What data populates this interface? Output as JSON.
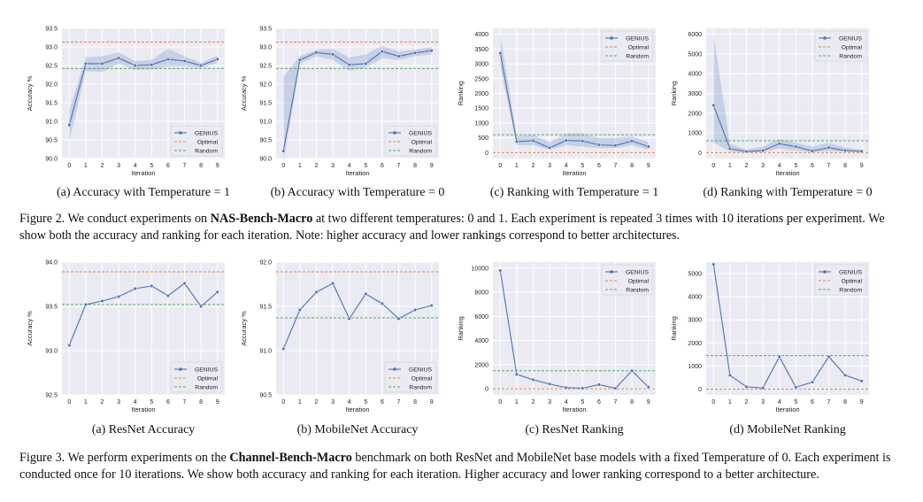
{
  "colors": {
    "plot_bg": "#eaeaf2",
    "grid": "#ffffff",
    "genius": "#4c72b0",
    "optimal": "#dd8452",
    "random": "#55a868",
    "band": "#4c72b0"
  },
  "legend_labels": [
    "GENIUS",
    "Optimal",
    "Random"
  ],
  "xlabel": "Iteration",
  "figure2": {
    "label": "Figure 2.",
    "caption_pre": " We conduct experiments on ",
    "caption_bold": "NAS-Bench-Macro",
    "caption_post": " at two different temperatures: 0 and 1. Each experiment is repeated 3 times with 10 iterations per experiment. We show both the accuracy and ranking for each iteration. Note: higher accuracy and lower rankings correspond to better architectures."
  },
  "figure3": {
    "label": "Figure 3.",
    "caption_pre": " We perform experiments on the ",
    "caption_bold": "Channel-Bench-Macro",
    "caption_post": " benchmark on both ResNet and MobileNet base models with a fixed Temperature of 0. Each experiment is conducted once for 10 iterations. We show both accuracy and ranking for each iteration. Higher accuracy and lower ranking correspond to a better architecture."
  },
  "chart_data": [
    {
      "id": "f2a",
      "type": "line",
      "subcaption": "(a) Accuracy with Temperature = 1",
      "xlabel": "Iteration",
      "ylabel": "Accuracy %",
      "x": [
        0,
        1,
        2,
        3,
        4,
        5,
        6,
        7,
        8,
        9
      ],
      "xlim": [
        0,
        9
      ],
      "ylim": [
        90.0,
        93.5
      ],
      "yticks": [
        "90.0",
        "90.5",
        "91.0",
        "91.5",
        "92.0",
        "92.5",
        "93.0",
        "93.5"
      ],
      "series": [
        {
          "name": "GENIUS",
          "values": [
            90.9,
            92.55,
            92.55,
            92.7,
            92.5,
            92.52,
            92.67,
            92.62,
            92.5,
            92.67
          ]
        }
      ],
      "band_low": [
        90.45,
        92.35,
        92.33,
        92.55,
        92.38,
        92.4,
        92.47,
        92.48,
        92.43,
        92.57
      ],
      "band_high": [
        91.3,
        92.72,
        92.75,
        92.85,
        92.62,
        92.65,
        92.95,
        92.75,
        92.57,
        92.77
      ],
      "optimal": 93.13,
      "random": 92.42,
      "legend": "bottom-right"
    },
    {
      "id": "f2b",
      "type": "line",
      "subcaption": "(b) Accuracy with Temperature = 0",
      "xlabel": "Iteration",
      "ylabel": "Accuracy %",
      "x": [
        0,
        1,
        2,
        3,
        4,
        5,
        6,
        7,
        8,
        9
      ],
      "xlim": [
        0,
        9
      ],
      "ylim": [
        90.0,
        93.5
      ],
      "yticks": [
        "90.0",
        "90.5",
        "91.0",
        "91.5",
        "92.0",
        "92.5",
        "93.0",
        "93.5"
      ],
      "series": [
        {
          "name": "GENIUS",
          "values": [
            90.2,
            92.65,
            92.85,
            92.8,
            92.52,
            92.55,
            92.88,
            92.75,
            92.84,
            92.9
          ]
        }
      ],
      "band_low": [
        89.9,
        92.55,
        92.75,
        92.65,
        92.35,
        92.45,
        92.7,
        92.65,
        92.75,
        92.8
      ],
      "band_high": [
        92.2,
        92.75,
        92.92,
        92.95,
        92.72,
        92.8,
        93.03,
        92.88,
        92.92,
        93.0
      ],
      "optimal": 93.13,
      "random": 92.42,
      "legend": "bottom-right"
    },
    {
      "id": "f2c",
      "type": "line",
      "subcaption": "(c) Ranking with Temperature = 1",
      "xlabel": "Iteration",
      "ylabel": "Ranking",
      "x": [
        0,
        1,
        2,
        3,
        4,
        5,
        6,
        7,
        8,
        9
      ],
      "xlim": [
        0,
        9
      ],
      "ylim": [
        -200,
        4200
      ],
      "yticks": [
        "0",
        "500",
        "1000",
        "1500",
        "2000",
        "2500",
        "3000",
        "3500",
        "4000"
      ],
      "series": [
        {
          "name": "GENIUS",
          "values": [
            3360,
            370,
            400,
            160,
            410,
            390,
            260,
            240,
            390,
            200
          ]
        }
      ],
      "band_low": [
        2900,
        250,
        250,
        100,
        250,
        200,
        150,
        150,
        250,
        100
      ],
      "band_high": [
        4000,
        550,
        600,
        350,
        650,
        650,
        500,
        500,
        550,
        350
      ],
      "optimal": 0,
      "random": 600,
      "legend": "top-right"
    },
    {
      "id": "f2d",
      "type": "line",
      "subcaption": "(d) Ranking with Temperature = 0",
      "xlabel": "Iteration",
      "ylabel": "Ranking",
      "x": [
        0,
        1,
        2,
        3,
        4,
        5,
        6,
        7,
        8,
        9
      ],
      "xlim": [
        0,
        9
      ],
      "ylim": [
        -300,
        6300
      ],
      "yticks": [
        "0",
        "1000",
        "2000",
        "3000",
        "4000",
        "5000",
        "6000"
      ],
      "series": [
        {
          "name": "GENIUS",
          "values": [
            2400,
            200,
            50,
            100,
            450,
            300,
            80,
            250,
            100,
            60
          ]
        }
      ],
      "band_low": [
        500,
        50,
        0,
        30,
        200,
        100,
        20,
        80,
        30,
        20
      ],
      "band_high": [
        6000,
        450,
        150,
        300,
        700,
        500,
        300,
        500,
        250,
        150
      ],
      "optimal": 0,
      "random": 600,
      "legend": "top-right"
    },
    {
      "id": "f3a",
      "type": "line",
      "subcaption": "(a) ResNet Accuracy",
      "xlabel": "Iteration",
      "ylabel": "Accuracy %",
      "x": [
        0,
        1,
        2,
        3,
        4,
        5,
        6,
        7,
        8,
        9
      ],
      "xlim": [
        0,
        9
      ],
      "ylim": [
        92.5,
        94.0
      ],
      "yticks": [
        "92.5",
        "93.0",
        "93.5",
        "94.0"
      ],
      "series": [
        {
          "name": "GENIUS",
          "values": [
            93.06,
            93.52,
            93.56,
            93.61,
            93.7,
            93.73,
            93.62,
            93.76,
            93.5,
            93.66
          ]
        }
      ],
      "optimal": 93.89,
      "random": 93.52,
      "legend": "bottom-right"
    },
    {
      "id": "f3b",
      "type": "line",
      "subcaption": "(b) MobileNet Accuracy",
      "xlabel": "Iteration",
      "ylabel": "Accuracy %",
      "x": [
        0,
        1,
        2,
        3,
        4,
        5,
        6,
        7,
        8,
        9
      ],
      "xlim": [
        0,
        9
      ],
      "ylim": [
        90.5,
        92.0
      ],
      "yticks": [
        "90.5",
        "91.0",
        "91.5",
        "92.0"
      ],
      "series": [
        {
          "name": "GENIUS",
          "values": [
            91.02,
            91.46,
            91.66,
            91.76,
            91.36,
            91.64,
            91.53,
            91.36,
            91.46,
            91.51
          ]
        }
      ],
      "optimal": 91.89,
      "random": 91.37,
      "legend": "bottom-right"
    },
    {
      "id": "f3c",
      "type": "line",
      "subcaption": "(c) ResNet Ranking",
      "xlabel": "Iteration",
      "ylabel": "Ranking",
      "x": [
        0,
        1,
        2,
        3,
        4,
        5,
        6,
        7,
        8,
        9
      ],
      "xlim": [
        0,
        9
      ],
      "ylim": [
        -500,
        10500
      ],
      "yticks": [
        "0",
        "2000",
        "4000",
        "6000",
        "8000",
        "10000"
      ],
      "series": [
        {
          "name": "GENIUS",
          "values": [
            9800,
            1200,
            750,
            400,
            100,
            50,
            350,
            50,
            1500,
            150
          ]
        }
      ],
      "optimal": 0,
      "random": 1500,
      "legend": "top-right"
    },
    {
      "id": "f3d",
      "type": "line",
      "subcaption": "(d) MobileNet Ranking",
      "xlabel": "Iteration",
      "ylabel": "Ranking",
      "x": [
        0,
        1,
        2,
        3,
        4,
        5,
        6,
        7,
        8,
        9
      ],
      "xlim": [
        0,
        9
      ],
      "ylim": [
        -250,
        5500
      ],
      "yticks": [
        "0",
        "1000",
        "2000",
        "3000",
        "4000",
        "5000"
      ],
      "series": [
        {
          "name": "GENIUS",
          "values": [
            5400,
            600,
            100,
            50,
            1400,
            80,
            300,
            1400,
            600,
            350
          ]
        }
      ],
      "optimal": 0,
      "random": 1450,
      "legend": "top-right"
    }
  ]
}
